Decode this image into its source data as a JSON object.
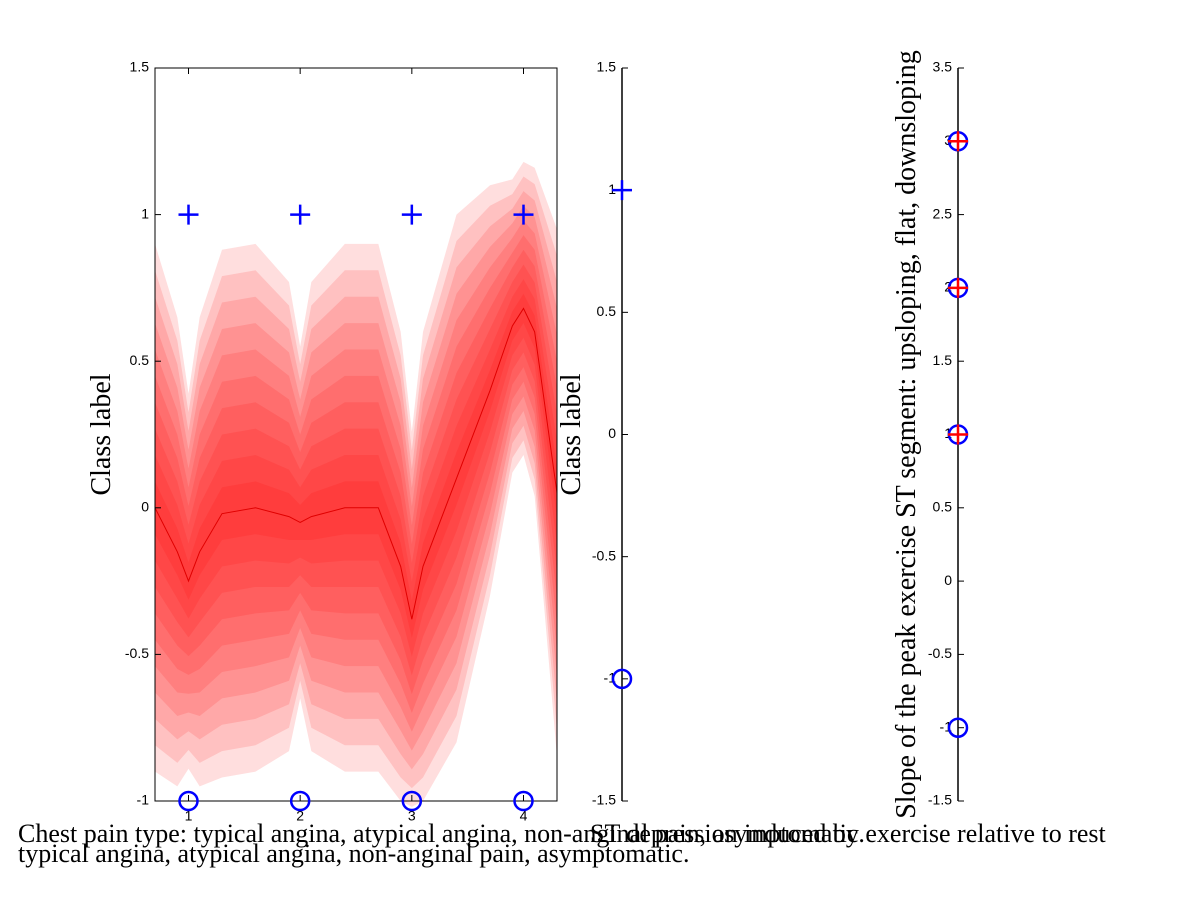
{
  "chart_data": [
    {
      "type": "band",
      "ylabel": "Class label",
      "xlabel": [
        "Chest pain type: typical angina, atypical angina, non-anginal pain, asymptomatic.",
        "typical angina, atypical angina, non-anginal pain, asymptomatic."
      ],
      "xlim": [
        0.7,
        4.3
      ],
      "xticks": [
        1,
        2,
        3,
        4
      ],
      "ylim": [
        -1,
        1.5
      ],
      "yticks": [
        -1,
        -0.5,
        0,
        0.5,
        1,
        1.5
      ],
      "band": {
        "color": "#ff0000",
        "x": [
          0.7,
          0.9,
          1,
          1.1,
          1.3,
          1.6,
          1.9,
          2,
          2.1,
          2.4,
          2.7,
          2.9,
          3,
          3.1,
          3.4,
          3.7,
          3.9,
          4,
          4.1,
          4.3
        ],
        "mean": [
          0,
          -0.15,
          -0.25,
          -0.15,
          -0.02,
          0,
          -0.03,
          -0.05,
          -0.03,
          0,
          0,
          -0.2,
          -0.38,
          -0.2,
          0.1,
          0.4,
          0.62,
          0.68,
          0.6,
          0.05
        ],
        "sd": [
          0.45,
          0.4,
          0.32,
          0.4,
          0.45,
          0.45,
          0.4,
          0.3,
          0.4,
          0.45,
          0.45,
          0.4,
          0.32,
          0.4,
          0.45,
          0.35,
          0.25,
          0.25,
          0.28,
          0.45
        ]
      },
      "points": [
        {
          "marker": "+",
          "color": "#0000ff",
          "x": [
            1,
            2,
            3,
            4
          ],
          "values": [
            1,
            1,
            1,
            1
          ]
        },
        {
          "marker": "o",
          "color": "#0000ff",
          "x": [
            1,
            2,
            3,
            4
          ],
          "values": [
            -1,
            -1,
            -1,
            -1
          ]
        }
      ]
    },
    {
      "type": "strip",
      "ylabel": "Class label",
      "xlabel": [
        "ST depression induced by exercise relative to rest"
      ],
      "ylim": [
        -1.5,
        1.5
      ],
      "yticks": [
        -1.5,
        -1,
        -0.5,
        0,
        0.5,
        1,
        1.5
      ],
      "points": [
        {
          "marker": "+",
          "color": "#0000ff",
          "values": [
            1
          ]
        },
        {
          "marker": "o",
          "color": "#0000ff",
          "values": [
            -1
          ]
        }
      ]
    },
    {
      "type": "strip",
      "ylabel": "Slope of the peak exercise ST segment: upsloping, flat, downsloping",
      "ylim": [
        -1.5,
        3.5
      ],
      "yticks": [
        -1.5,
        -1,
        -0.5,
        0,
        0.5,
        1,
        1.5,
        2,
        2.5,
        3,
        3.5
      ],
      "points": [
        {
          "marker": "o",
          "color": "#0000ff",
          "values": [
            -1,
            1,
            2,
            3
          ]
        },
        {
          "marker": "+",
          "color": "#ff0000",
          "values": [
            1,
            2,
            3
          ]
        }
      ]
    }
  ]
}
